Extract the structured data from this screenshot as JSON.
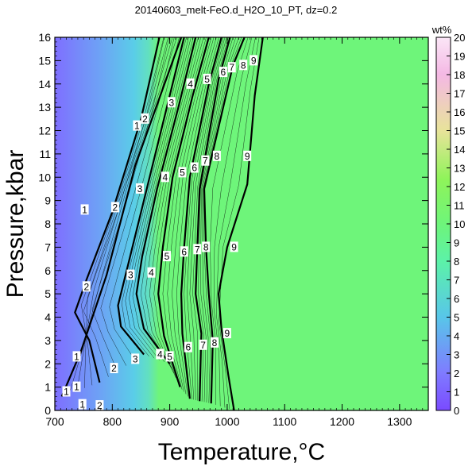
{
  "chart_data": {
    "type": "heatmap",
    "title": "20140603_melt-FeO.d_H2O_10_PT, dz=0.2",
    "xlabel": "Temperature,°C",
    "ylabel": "Pressure,kbar",
    "xlim": [
      700,
      1350
    ],
    "ylim": [
      0,
      16
    ],
    "x_ticks": [
      "700",
      "800",
      "900",
      "1000",
      "1100",
      "1200",
      "1300"
    ],
    "y_ticks": [
      "0",
      "1",
      "2",
      "3",
      "4",
      "5",
      "6",
      "7",
      "8",
      "9",
      "10",
      "11",
      "12",
      "13",
      "14",
      "15",
      "16"
    ],
    "colorbar": {
      "label": "wt%",
      "range": [
        0,
        20
      ],
      "ticks": [
        "0",
        "1",
        "2",
        "3",
        "4",
        "5",
        "6",
        "7",
        "8",
        "9",
        "10",
        "11",
        "12",
        "13",
        "14",
        "15",
        "16",
        "17",
        "18",
        "19",
        "20"
      ]
    },
    "plateau_value": 10,
    "colors": {
      "low": "#7f6fff",
      "mid": "#5acde8",
      "plateau": "#6ef57a",
      "high": "#f7d6f2",
      "contour": "#000000"
    },
    "contours": [
      {
        "level": 1,
        "points": [
          [
            712,
            0.6
          ],
          [
            745,
            2.5
          ],
          [
            790,
            5.8
          ],
          [
            840,
            10.5
          ],
          [
            885,
            13.6
          ],
          [
            920,
            16
          ]
        ]
      },
      {
        "level": 2,
        "points": [
          [
            778,
            1.2
          ],
          [
            760,
            3.0
          ],
          [
            735,
            4.2
          ],
          [
            755,
            5.6
          ],
          [
            800,
            8.5
          ],
          [
            850,
            12.5
          ],
          [
            882,
            16
          ]
        ]
      },
      {
        "level": 3,
        "points": [
          [
            855,
            2.4
          ],
          [
            815,
            3.6
          ],
          [
            810,
            4.5
          ],
          [
            825,
            6.0
          ],
          [
            860,
            9.5
          ],
          [
            900,
            13.5
          ],
          [
            925,
            16
          ]
        ]
      },
      {
        "level": 4,
        "points": [
          [
            900,
            2.0
          ],
          [
            855,
            3.5
          ],
          [
            842,
            5.0
          ],
          [
            852,
            6.6
          ],
          [
            878,
            9.5
          ],
          [
            915,
            13.0
          ],
          [
            945,
            16
          ]
        ]
      },
      {
        "level": 5,
        "points": [
          [
            918,
            1.0
          ],
          [
            890,
            3.2
          ],
          [
            880,
            5.0
          ],
          [
            888,
            7.0
          ],
          [
            905,
            10.0
          ],
          [
            940,
            13.5
          ],
          [
            968,
            16
          ]
        ]
      },
      {
        "level": 6,
        "points": [
          [
            935,
            0.5
          ],
          [
            922,
            3.3
          ],
          [
            920,
            5.0
          ],
          [
            925,
            7.0
          ],
          [
            935,
            10.0
          ],
          [
            968,
            14.0
          ],
          [
            990,
            16
          ]
        ]
      },
      {
        "level": 7,
        "points": [
          [
            952,
            0.4
          ],
          [
            955,
            3.3
          ],
          [
            945,
            5.0
          ],
          [
            948,
            7.0
          ],
          [
            952,
            9.5
          ],
          [
            985,
            14.2
          ],
          [
            1005,
            16
          ]
        ]
      },
      {
        "level": 8,
        "points": [
          [
            972,
            0.3
          ],
          [
            975,
            3.0
          ],
          [
            968,
            5.0
          ],
          [
            963,
            7.0
          ],
          [
            960,
            9.5
          ],
          [
            1010,
            14.8
          ],
          [
            1030,
            16
          ]
        ]
      },
      {
        "level": 9,
        "points": [
          [
            1012,
            0.0
          ],
          [
            1002,
            1.5
          ],
          [
            990,
            3.5
          ],
          [
            985,
            5.0
          ],
          [
            1000,
            7.0
          ],
          [
            1035,
            9.7
          ],
          [
            1048,
            13.5
          ],
          [
            1062,
            16
          ]
        ]
      }
    ],
    "labels": [
      {
        "text": "1",
        "at": [
          843,
          12.2
        ],
        "level": 1
      },
      {
        "text": "1",
        "at": [
          752,
          8.6
        ],
        "level": 1
      },
      {
        "text": "1",
        "at": [
          738,
          2.3
        ],
        "level": 1
      },
      {
        "text": "1",
        "at": [
          738,
          1.0
        ],
        "level": 1
      },
      {
        "text": "1",
        "at": [
          720,
          0.8
        ],
        "level": 1
      },
      {
        "text": "1",
        "at": [
          748,
          0.25
        ],
        "level": 1
      },
      {
        "text": "2",
        "at": [
          857,
          12.5
        ],
        "level": 2
      },
      {
        "text": "2",
        "at": [
          805,
          8.7
        ],
        "level": 2
      },
      {
        "text": "2",
        "at": [
          755,
          5.3
        ],
        "level": 2
      },
      {
        "text": "2",
        "at": [
          803,
          1.8
        ],
        "level": 2
      },
      {
        "text": "2",
        "at": [
          778,
          0.2
        ],
        "level": 2
      },
      {
        "text": "3",
        "at": [
          903,
          13.2
        ],
        "level": 3
      },
      {
        "text": "3",
        "at": [
          848,
          9.5
        ],
        "level": 3
      },
      {
        "text": "3",
        "at": [
          832,
          5.8
        ],
        "level": 3
      },
      {
        "text": "3",
        "at": [
          840,
          2.2
        ],
        "level": 3
      },
      {
        "text": "4",
        "at": [
          936,
          14.0
        ],
        "level": 4
      },
      {
        "text": "4",
        "at": [
          892,
          10.0
        ],
        "level": 4
      },
      {
        "text": "4",
        "at": [
          868,
          5.9
        ],
        "level": 4
      },
      {
        "text": "4",
        "at": [
          883,
          2.4
        ],
        "level": 4
      },
      {
        "text": "5",
        "at": [
          965,
          14.2
        ],
        "level": 5
      },
      {
        "text": "5",
        "at": [
          922,
          10.2
        ],
        "level": 5
      },
      {
        "text": "5",
        "at": [
          895,
          6.6
        ],
        "level": 5
      },
      {
        "text": "5",
        "at": [
          900,
          2.3
        ],
        "level": 5
      },
      {
        "text": "6",
        "at": [
          993,
          14.5
        ],
        "level": 6
      },
      {
        "text": "6",
        "at": [
          943,
          10.4
        ],
        "level": 6
      },
      {
        "text": "6",
        "at": [
          925,
          6.8
        ],
        "level": 6
      },
      {
        "text": "6",
        "at": [
          932,
          2.7
        ],
        "level": 6
      },
      {
        "text": "7",
        "at": [
          1008,
          14.7
        ],
        "level": 7
      },
      {
        "text": "7",
        "at": [
          962,
          10.7
        ],
        "level": 7
      },
      {
        "text": "7",
        "at": [
          948,
          6.9
        ],
        "level": 7
      },
      {
        "text": "7",
        "at": [
          958,
          2.8
        ],
        "level": 7
      },
      {
        "text": "8",
        "at": [
          1028,
          14.8
        ],
        "level": 8
      },
      {
        "text": "8",
        "at": [
          982,
          10.9
        ],
        "level": 8
      },
      {
        "text": "8",
        "at": [
          963,
          7.0
        ],
        "level": 8
      },
      {
        "text": "8",
        "at": [
          978,
          2.9
        ],
        "level": 8
      },
      {
        "text": "9",
        "at": [
          1046,
          15.0
        ],
        "level": 9
      },
      {
        "text": "9",
        "at": [
          1035,
          10.9
        ],
        "level": 9
      },
      {
        "text": "9",
        "at": [
          1012,
          7.0
        ],
        "level": 9
      },
      {
        "text": "9",
        "at": [
          1000,
          3.3
        ],
        "level": 9
      }
    ]
  }
}
